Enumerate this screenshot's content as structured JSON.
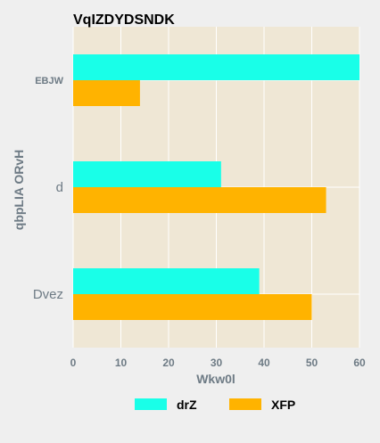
{
  "chart_data": {
    "type": "bar",
    "orientation": "horizontal",
    "title": "VqIZDYDSNDK",
    "xlabel": "Wkw0l",
    "ylabel": "qbpLIA ORvH",
    "categories": [
      "EBJW",
      "d",
      "Dvez"
    ],
    "series": [
      {
        "name": "drZ",
        "color": "#19ffe8",
        "values": [
          60,
          31,
          39
        ]
      },
      {
        "name": "XFP",
        "color": "#ffb300",
        "values": [
          14,
          53,
          50
        ]
      }
    ],
    "xlim": [
      0,
      60
    ],
    "xticks": [
      "0",
      "10",
      "20",
      "30",
      "40",
      "50",
      "60"
    ],
    "grid": true,
    "legend_position": "bottom",
    "plot_background": "#efe7d5",
    "page_background": "#efefef"
  }
}
